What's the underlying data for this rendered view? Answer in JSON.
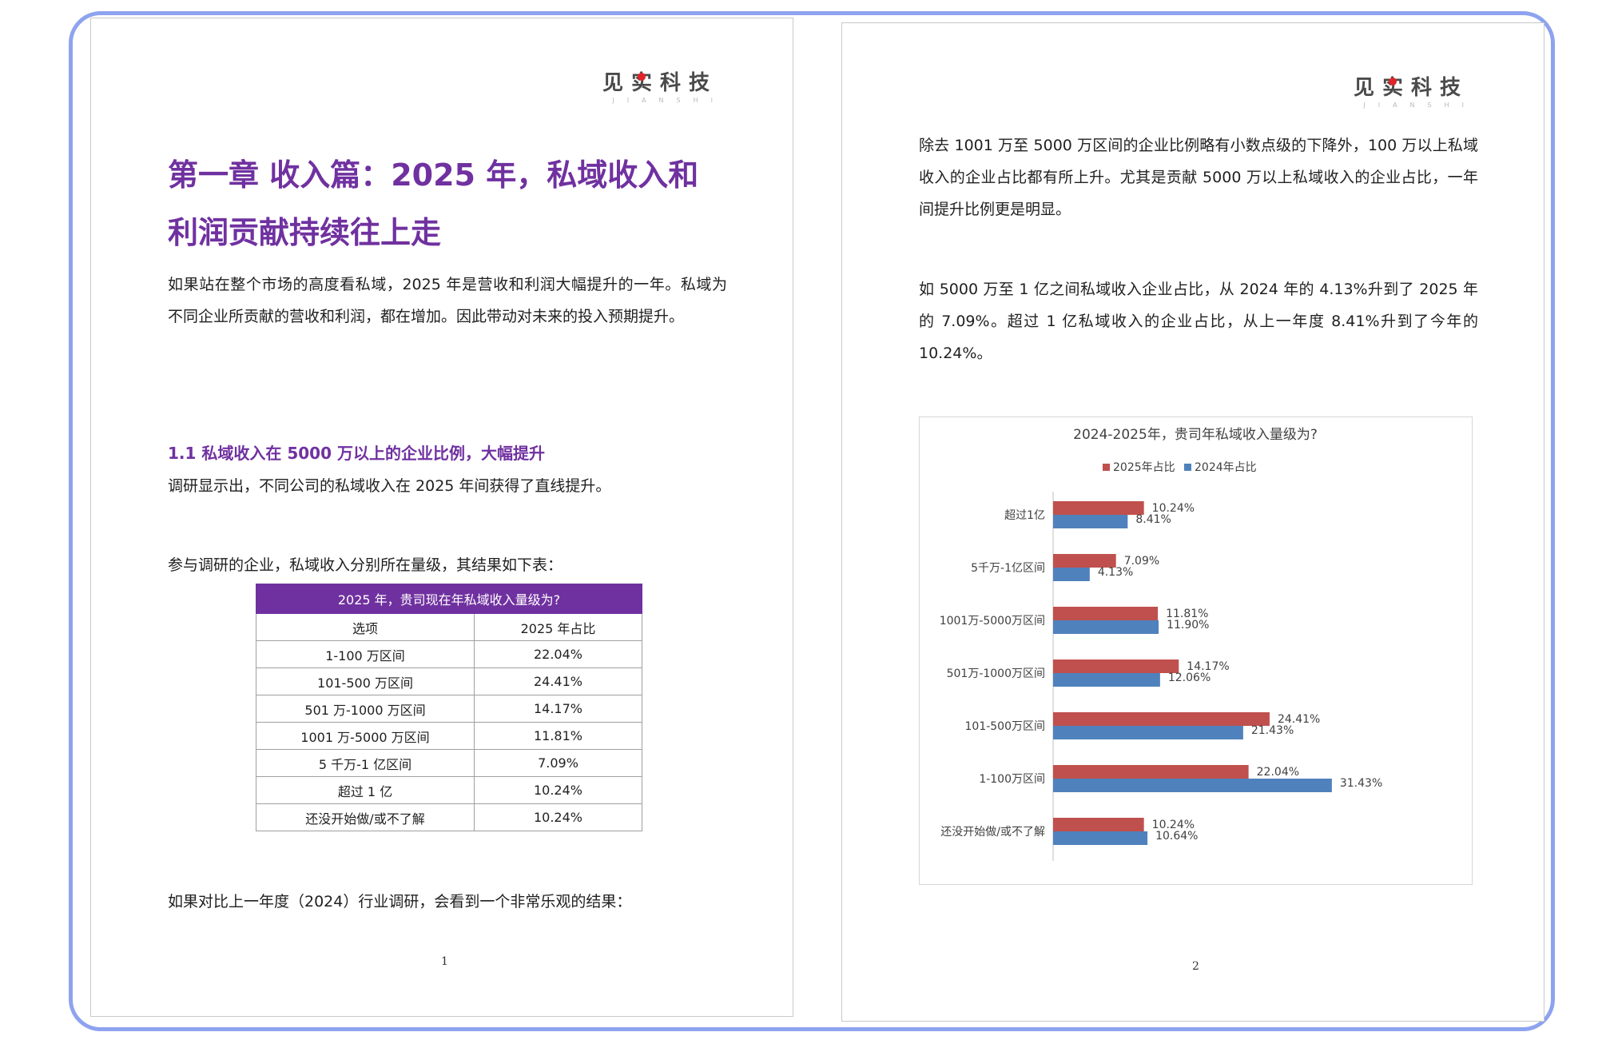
{
  "brand": {
    "name": "见实科技",
    "romanized": "JIANSHI"
  },
  "page1": {
    "title_line1": "第一章 收入篇：2025 年，私域收入和",
    "title_line2": "利润贡献持续往上走",
    "intro": "如果站在整个市场的高度看私域，2025 年是营收和利润大幅提升的一年。私域为不同企业所贡献的营收和利润，都在增加。因此带动对未来的投入预期提升。",
    "section_heading": "1.1 私域收入在 5000 万以上的企业比例，大幅提升",
    "para2": "调研显示出，不同公司的私域收入在 2025 年间获得了直线提升。",
    "para3": "参与调研的企业，私域收入分别所在量级，其结果如下表：",
    "table": {
      "title": "2025 年，贵司现在年私域收入量级为?",
      "headers": [
        "选项",
        "2025 年占比"
      ],
      "rows": [
        [
          "1-100 万区间",
          "22.04%"
        ],
        [
          "101-500 万区间",
          "24.41%"
        ],
        [
          "501 万-1000 万区间",
          "14.17%"
        ],
        [
          "1001 万-5000 万区间",
          "11.81%"
        ],
        [
          "5 千万-1 亿区间",
          "7.09%"
        ],
        [
          "超过 1 亿",
          "10.24%"
        ],
        [
          "还没开始做/或不了解",
          "10.24%"
        ]
      ]
    },
    "para4": "如果对比上一年度（2024）行业调研，会看到一个非常乐观的结果：",
    "page_number": "1"
  },
  "page2": {
    "para1": "除去 1001 万至 5000 万区间的企业比例略有小数点级的下降外，100 万以上私域收入的企业占比都有所上升。尤其是贡献 5000 万以上私域收入的企业占比，一年间提升比例更是明显。",
    "para2": "如 5000 万至 1 亿之间私域收入企业占比，从 2024 年的 4.13%升到了 2025 年的 7.09%。超过 1 亿私域收入的企业占比，从上一年度 8.41%升到了今年的 10.24%。",
    "page_number": "2"
  },
  "chart_data": {
    "type": "bar",
    "orientation": "horizontal",
    "title": "2024-2025年，贵司年私域收入量级为?",
    "legend_position": "top",
    "categories": [
      "超过1亿",
      "5千万-1亿区间",
      "1001万-5000万区间",
      "501万-1000万区间",
      "101-500万区间",
      "1-100万区间",
      "还没开始做/或不了解"
    ],
    "series": [
      {
        "name": "2025年占比",
        "color": "#c0504d",
        "values": [
          10.24,
          7.09,
          11.81,
          14.17,
          24.41,
          22.04,
          10.24
        ],
        "labels": [
          "10.24%",
          "7.09%",
          "11.81%",
          "14.17%",
          "24.41%",
          "22.04%",
          "10.24%"
        ]
      },
      {
        "name": "2024年占比",
        "color": "#4f81bd",
        "values": [
          8.41,
          4.13,
          11.9,
          12.06,
          21.43,
          31.43,
          10.64
        ],
        "labels": [
          "8.41%",
          "4.13%",
          "11.90%",
          "12.06%",
          "21.43%",
          "31.43%",
          "10.64%"
        ]
      }
    ],
    "grid": false
  }
}
